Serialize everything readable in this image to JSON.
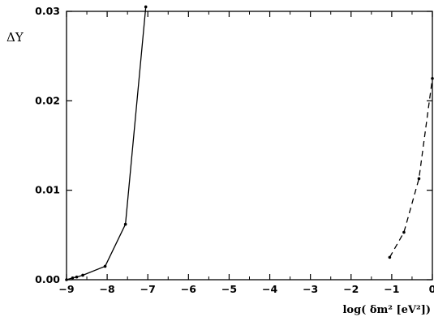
{
  "chart_data": {
    "type": "line",
    "xlabel": "log( δm² [eV²])",
    "ylabel": "ΔY",
    "xlim": [
      -9,
      0
    ],
    "ylim": [
      0,
      0.03
    ],
    "x_ticks": [
      -9,
      -8,
      -7,
      -6,
      -5,
      -4,
      -3,
      -2,
      -1,
      0
    ],
    "x_tick_labels": [
      "−9",
      "−8",
      "−7",
      "−6",
      "−5",
      "−4",
      "−3",
      "−2",
      "−1",
      "0"
    ],
    "y_ticks": [
      0,
      0.01,
      0.02,
      0.03
    ],
    "y_tick_labels": [
      "0.00",
      "0.01",
      "0.02",
      "0.03"
    ],
    "grid": false,
    "series": [
      {
        "style": "solid",
        "x": [
          -9.0,
          -8.85,
          -8.75,
          -8.6,
          -8.05,
          -7.55,
          -7.05
        ],
        "y": [
          0.0,
          0.0002,
          0.0003,
          0.0005,
          0.0015,
          0.0062,
          0.0305
        ]
      },
      {
        "style": "dashed",
        "x": [
          -1.05,
          -0.7,
          -0.33,
          0.0
        ],
        "y": [
          0.0025,
          0.0053,
          0.0113,
          0.0225
        ]
      }
    ]
  }
}
